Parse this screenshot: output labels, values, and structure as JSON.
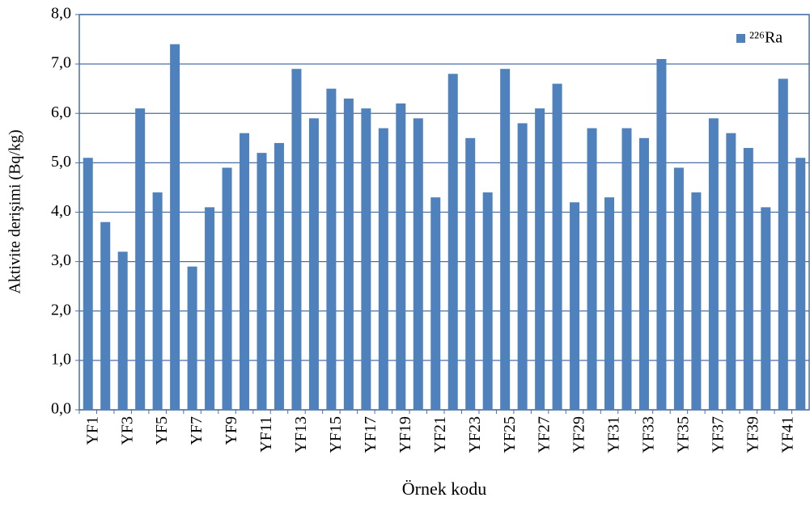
{
  "chart_data": {
    "type": "bar",
    "x_label": "Örnek kodu",
    "y_label": "Aktivite derişimi (Bq/kg)",
    "categories": [
      "YF1",
      null,
      "YF3",
      null,
      "YF5",
      null,
      "YF7",
      null,
      "YF9",
      null,
      "YF11",
      null,
      "YF13",
      null,
      "YF15",
      null,
      "YF17",
      null,
      "YF19",
      null,
      "YF21",
      null,
      "YF23",
      null,
      "YF25",
      null,
      "YF27",
      null,
      "YF29",
      null,
      "YF31",
      null,
      "YF33",
      null,
      "YF35",
      null,
      "YF37",
      null,
      "YF39",
      null,
      "YF41",
      null
    ],
    "series": [
      {
        "name": "²²⁶Ra",
        "color": "#4f81bd",
        "values": [
          5.1,
          3.8,
          3.2,
          6.1,
          4.4,
          7.4,
          2.9,
          4.1,
          4.9,
          5.6,
          5.2,
          5.4,
          6.9,
          5.9,
          6.5,
          6.3,
          6.1,
          5.7,
          6.2,
          5.9,
          4.3,
          6.8,
          5.5,
          4.4,
          6.9,
          5.8,
          6.1,
          6.6,
          4.2,
          5.7,
          4.3,
          5.7,
          5.5,
          7.1,
          4.9,
          4.4,
          5.9,
          5.6,
          5.3,
          4.1,
          6.7,
          5.1
        ]
      }
    ],
    "ylim": [
      0,
      8
    ],
    "yticks": [
      {
        "value": 0,
        "label": "0,0"
      },
      {
        "value": 1,
        "label": "1,0"
      },
      {
        "value": 2,
        "label": "2,0"
      },
      {
        "value": 3,
        "label": "3,0"
      },
      {
        "value": 4,
        "label": "4,0"
      },
      {
        "value": 5,
        "label": "5,0"
      },
      {
        "value": 6,
        "label": "6,0"
      },
      {
        "value": 7,
        "label": "7,0"
      },
      {
        "value": 8,
        "label": "8,0"
      }
    ],
    "grid": true,
    "legend": "top-right"
  }
}
